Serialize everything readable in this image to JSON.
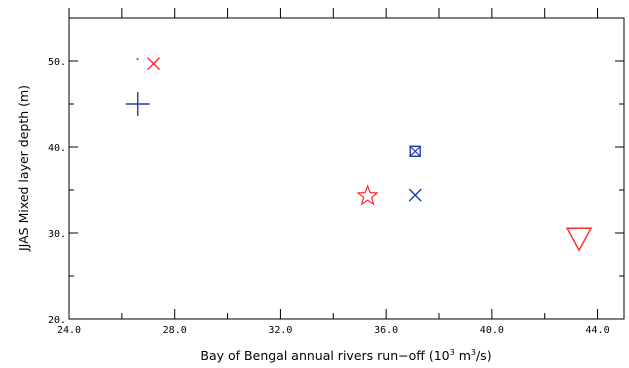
{
  "chart_data": {
    "type": "scatter",
    "xlabel": {
      "prefix": "Bay of Bengal annual rivers run−off (10",
      "exp1": "3",
      "mid": " m",
      "exp2": "3",
      "suffix": "/s)"
    },
    "ylabel": "JJAS Mixed layer depth (m)",
    "xlim": [
      24.0,
      45.0
    ],
    "ylim": [
      20.0,
      55.0
    ],
    "x_ticks": [
      "24.0",
      "28.0",
      "32.0",
      "36.0",
      "40.0",
      "44.0"
    ],
    "x_tick_values": [
      24,
      28,
      32,
      36,
      40,
      44
    ],
    "x_minor_values": [
      26,
      30,
      34,
      38,
      42
    ],
    "y_ticks": [
      "20.",
      "30.",
      "40.",
      "50."
    ],
    "y_tick_values": [
      20,
      30,
      40,
      50
    ],
    "y_minor_values": [
      25,
      35,
      45
    ],
    "points": [
      {
        "x": 26.6,
        "y": 50.2,
        "marker": "dot",
        "color": "#333333"
      },
      {
        "x": 27.2,
        "y": 49.7,
        "marker": "x",
        "color": "#ff2a2a"
      },
      {
        "x": 26.6,
        "y": 45.0,
        "marker": "plus",
        "color": "#1f3fa8"
      },
      {
        "x": 37.1,
        "y": 39.5,
        "marker": "boxed-x",
        "color": "#1f3fa8"
      },
      {
        "x": 35.3,
        "y": 34.3,
        "marker": "star",
        "color": "#ff2a2a"
      },
      {
        "x": 37.1,
        "y": 34.4,
        "marker": "x",
        "color": "#1f3fa8"
      },
      {
        "x": 43.3,
        "y": 29.4,
        "marker": "triangle-down",
        "color": "#ff2a2a"
      }
    ],
    "grid": false,
    "legend": "none"
  }
}
